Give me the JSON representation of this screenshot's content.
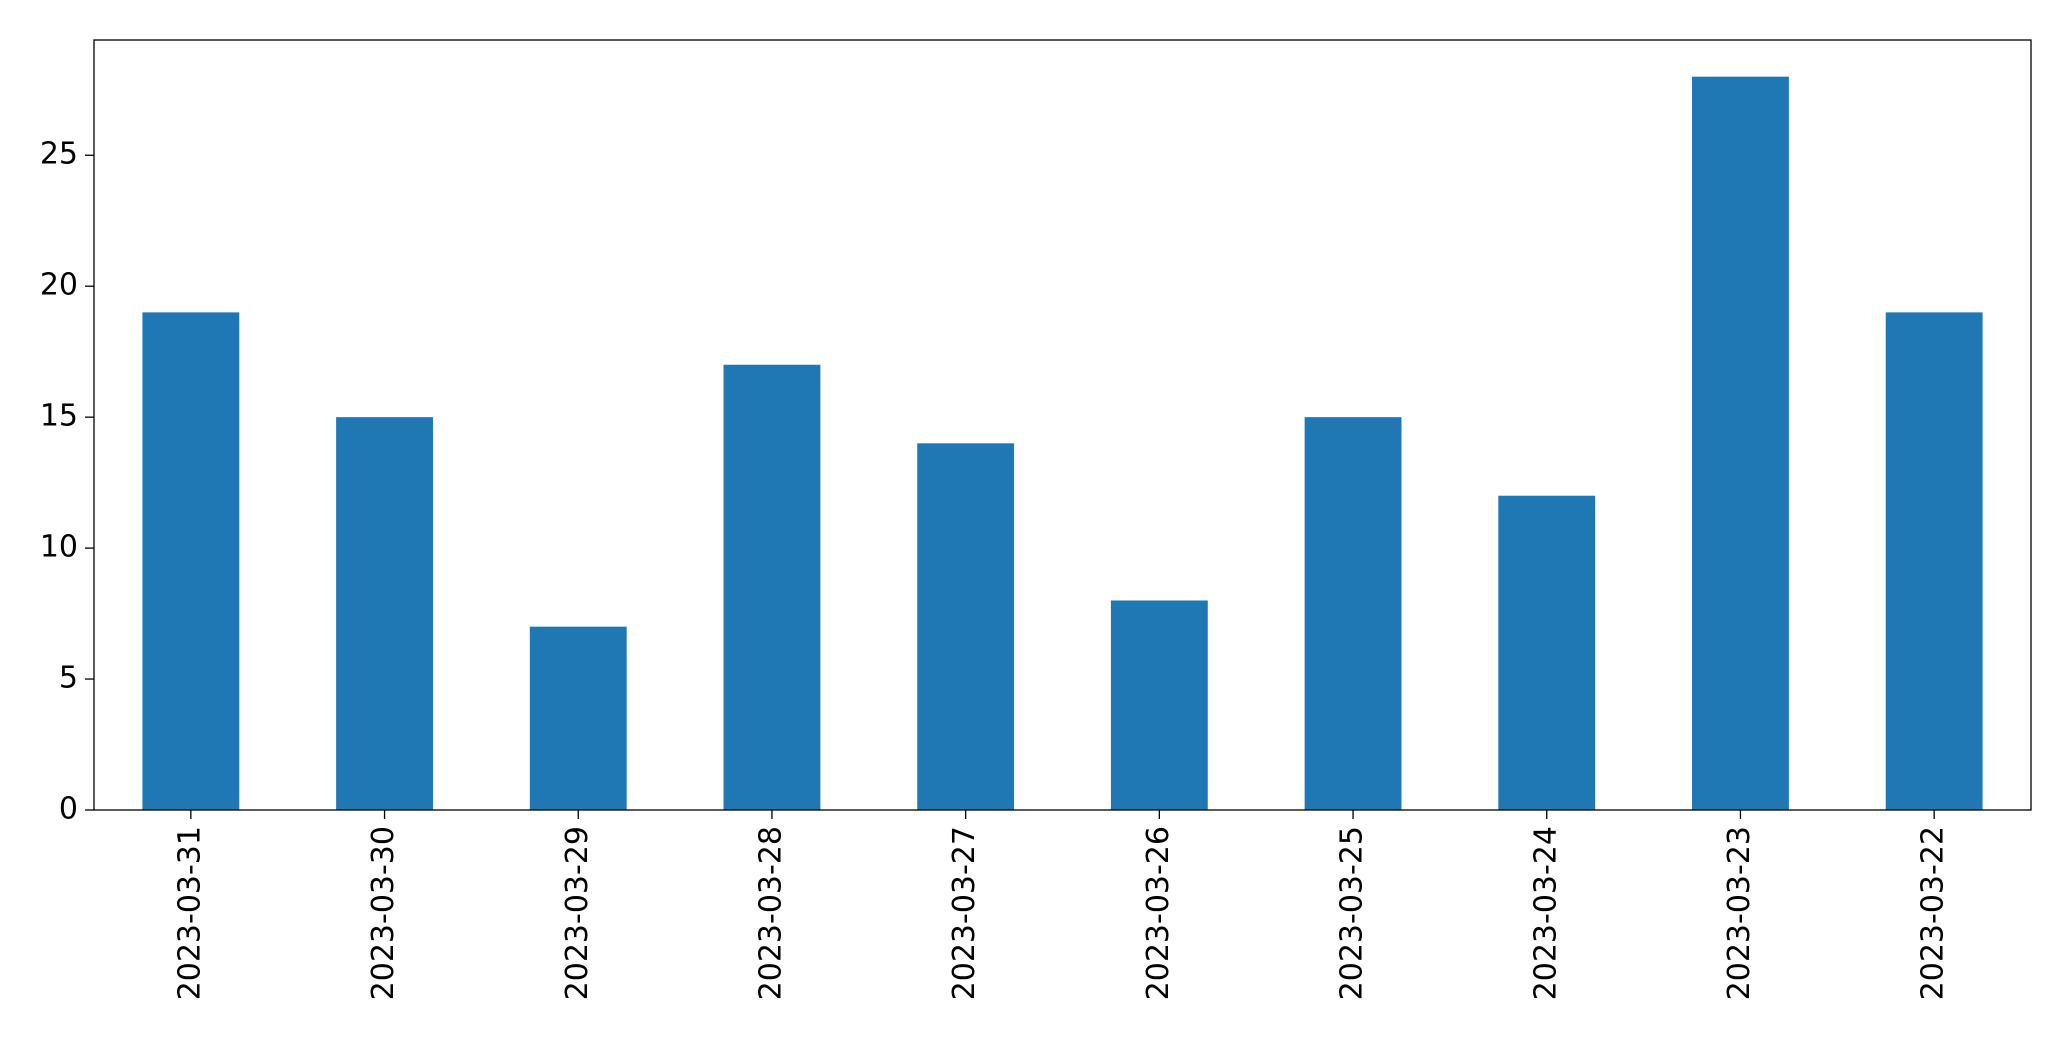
{
  "chart_data": {
    "type": "bar",
    "categories": [
      "2023-03-31",
      "2023-03-30",
      "2023-03-29",
      "2023-03-28",
      "2023-03-27",
      "2023-03-26",
      "2023-03-25",
      "2023-03-24",
      "2023-03-23",
      "2023-03-22"
    ],
    "values": [
      19,
      15,
      7,
      17,
      14,
      8,
      15,
      12,
      28,
      19
    ],
    "color": "#1f77b4",
    "ylim": [
      0,
      29.4
    ],
    "yticks": [
      0,
      5,
      10,
      15,
      20,
      25
    ],
    "grid": false
  }
}
